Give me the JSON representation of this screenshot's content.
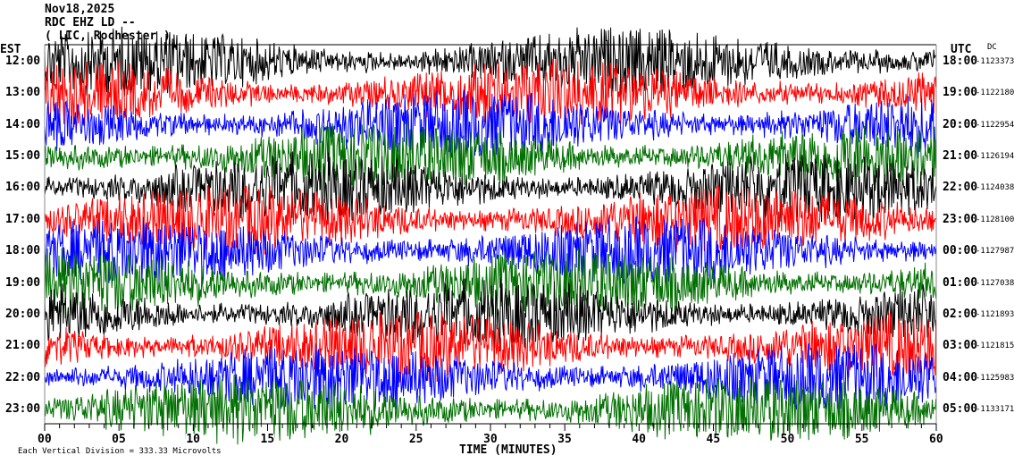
{
  "header": {
    "date": "Nov18,2025",
    "station": "RDC EHZ LD --",
    "location": "( LIC, Rochester )"
  },
  "left_axis_title": "EST",
  "right_axis_title": "UTC",
  "dc_title": "DC",
  "footer": {
    "scale": "Each Vertical Division = 333.33 Microvolts",
    "xlabel": "TIME (MINUTES)"
  },
  "chart_data": {
    "type": "line",
    "xlabel": "TIME (MINUTES)",
    "xlim": [
      0,
      60
    ],
    "x_ticks": [
      "00",
      "05",
      "10",
      "15",
      "20",
      "25",
      "30",
      "35",
      "40",
      "45",
      "50",
      "55",
      "60"
    ],
    "trace_colors": [
      "#000000",
      "#ff0000",
      "#0000ff",
      "#007000"
    ],
    "rows": [
      {
        "est": "12:00",
        "utc": "18:00",
        "dc": "-1123373"
      },
      {
        "est": "13:00",
        "utc": "19:00",
        "dc": "-1122180"
      },
      {
        "est": "14:00",
        "utc": "20:00",
        "dc": "-1122954"
      },
      {
        "est": "15:00",
        "utc": "21:00",
        "dc": "-1126194"
      },
      {
        "est": "16:00",
        "utc": "22:00",
        "dc": "-1124038"
      },
      {
        "est": "17:00",
        "utc": "23:00",
        "dc": "-1128100"
      },
      {
        "est": "18:00",
        "utc": "00:00",
        "dc": "-1127987"
      },
      {
        "est": "19:00",
        "utc": "01:00",
        "dc": "-1127038"
      },
      {
        "est": "20:00",
        "utc": "02:00",
        "dc": "-1121893"
      },
      {
        "est": "21:00",
        "utc": "03:00",
        "dc": "-1121815"
      },
      {
        "est": "22:00",
        "utc": "04:00",
        "dc": "-1125983"
      },
      {
        "est": "23:00",
        "utc": "05:00",
        "dc": "-1133171"
      }
    ]
  }
}
